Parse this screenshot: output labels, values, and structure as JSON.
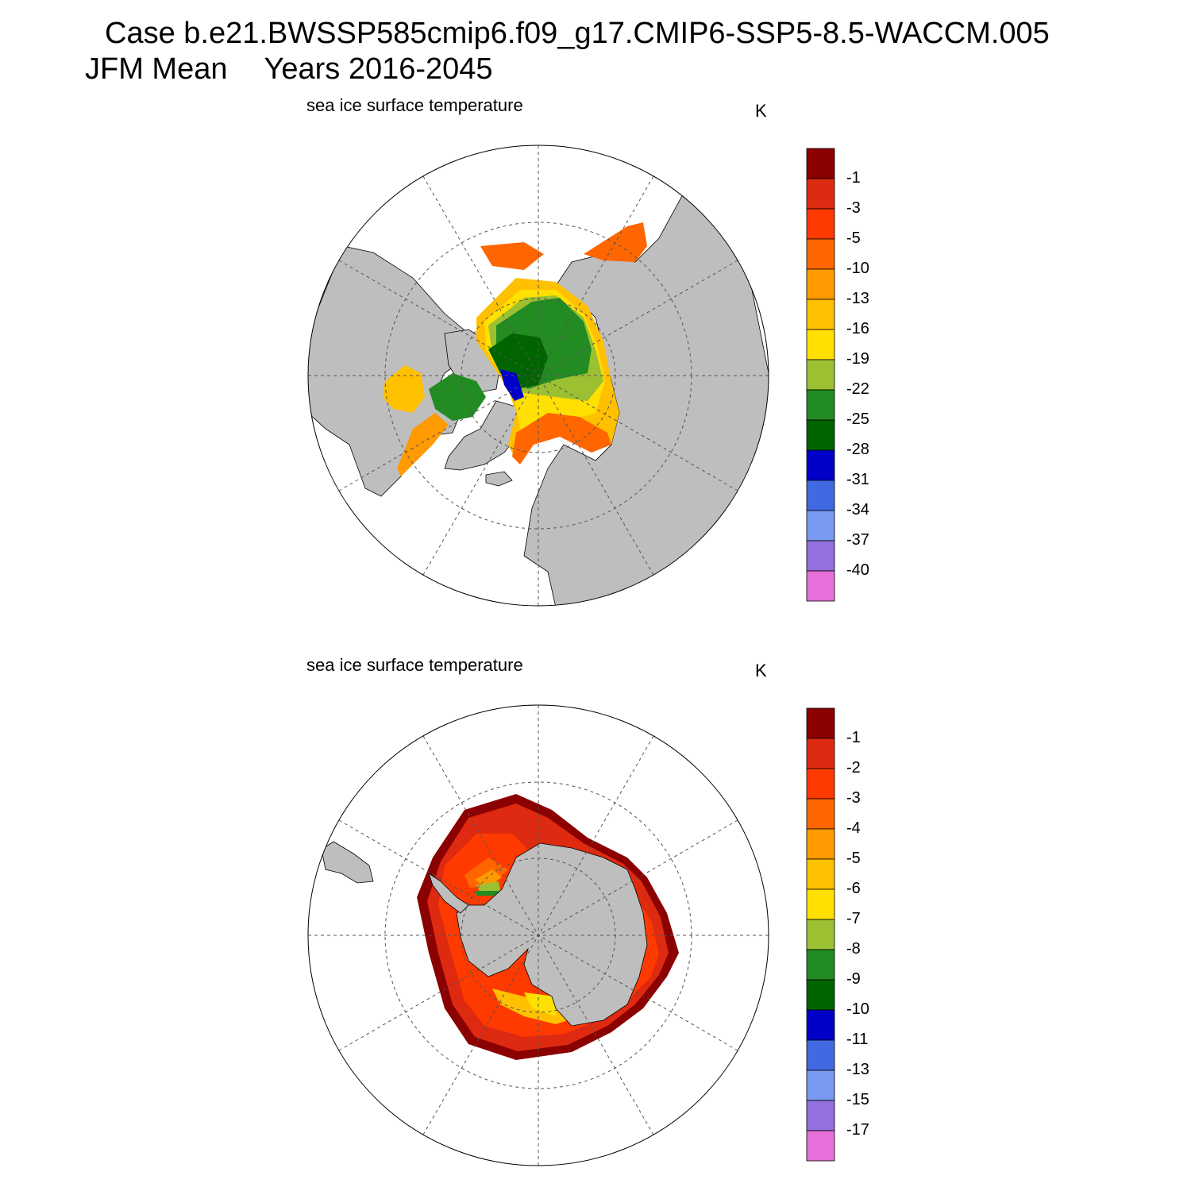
{
  "header": {
    "case_line": "Case b.e21.BWSSP585cmip6.f09_g17.CMIP6-SSP5-8.5-WACCM.005",
    "season": "JFM Mean",
    "years": "Years 2016-2045"
  },
  "panels": [
    {
      "hemisphere": "NH",
      "title": "sea ice surface temperature",
      "units": "K",
      "colorbar": {
        "colors": [
          "#8b0000",
          "#dd2a10",
          "#ff3a00",
          "#ff6600",
          "#ff9a00",
          "#ffc000",
          "#ffe000",
          "#9bc032",
          "#228b22",
          "#006400",
          "#0000c8",
          "#4169e1",
          "#7799ef",
          "#9370db",
          "#e66fd9"
        ],
        "labels": [
          "-1",
          "-3",
          "-5",
          "-10",
          "-13",
          "-16",
          "-19",
          "-22",
          "-25",
          "-28",
          "-31",
          "-34",
          "-37",
          "-40"
        ]
      }
    },
    {
      "hemisphere": "SH",
      "title": "sea ice surface temperature",
      "units": "K",
      "colorbar": {
        "colors": [
          "#8b0000",
          "#dd2a10",
          "#ff3a00",
          "#ff6600",
          "#ff9a00",
          "#ffc000",
          "#ffe000",
          "#9bc032",
          "#228b22",
          "#006400",
          "#0000c8",
          "#4169e1",
          "#7799ef",
          "#9370db",
          "#e66fd9"
        ],
        "labels": [
          "-1",
          "-2",
          "-3",
          "-4",
          "-5",
          "-6",
          "-7",
          "-8",
          "-9",
          "-10",
          "-11",
          "-13",
          "-15",
          "-17"
        ]
      }
    }
  ],
  "colors": {
    "land": "#bebebe",
    "ocean": "#ffffff",
    "grid": "#555555"
  }
}
